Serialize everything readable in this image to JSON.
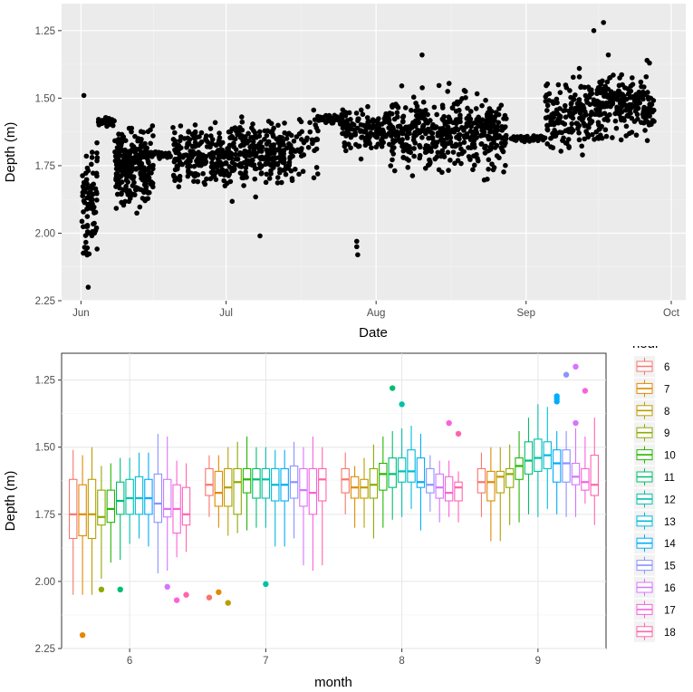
{
  "chart_data": [
    {
      "type": "scatter",
      "title": "",
      "xlabel": "Date",
      "ylabel": "Depth (m)",
      "y_reversed": true,
      "ylim": [
        2.25,
        1.15
      ],
      "y_ticks": [
        1.25,
        1.5,
        1.75,
        2.0,
        2.25
      ],
      "y_tick_labels": [
        "1.25",
        "1.50",
        "1.75",
        "2.00",
        "2.25"
      ],
      "x_range_days": [
        -4,
        125
      ],
      "x_ticks": [
        {
          "day": 0,
          "label": "Jun"
        },
        {
          "day": 30,
          "label": "Jul"
        },
        {
          "day": 61,
          "label": "Aug"
        },
        {
          "day": 92,
          "label": "Sep"
        },
        {
          "day": 122,
          "label": "Oct"
        }
      ],
      "point_color": "#000000",
      "seed": 7,
      "segments": [
        {
          "d0": 0.2,
          "d1": 3.5,
          "n": 80,
          "mean": 1.88,
          "sd": 0.16
        },
        {
          "d0": 3.5,
          "d1": 7.0,
          "n": 25,
          "mean": 1.59,
          "sd": 0.012
        },
        {
          "d0": 7.0,
          "d1": 15.0,
          "n": 260,
          "mean": 1.76,
          "sd": 0.085
        },
        {
          "d0": 15.0,
          "d1": 19.0,
          "n": 20,
          "mean": 1.71,
          "sd": 0.01
        },
        {
          "d0": 19.0,
          "d1": 44.0,
          "n": 460,
          "mean": 1.71,
          "sd": 0.08
        },
        {
          "d0": 44.0,
          "d1": 49.0,
          "n": 40,
          "mean": 1.66,
          "sd": 0.08
        },
        {
          "d0": 49.0,
          "d1": 54.0,
          "n": 35,
          "mean": 1.58,
          "sd": 0.01
        },
        {
          "d0": 54.0,
          "d1": 64.0,
          "n": 140,
          "mean": 1.62,
          "sd": 0.055
        },
        {
          "d0": 64.0,
          "d1": 88.0,
          "n": 440,
          "mean": 1.63,
          "sd": 0.09
        },
        {
          "d0": 88.0,
          "d1": 96.0,
          "n": 45,
          "mean": 1.65,
          "sd": 0.008
        },
        {
          "d0": 96.0,
          "d1": 108.0,
          "n": 200,
          "mean": 1.57,
          "sd": 0.09
        },
        {
          "d0": 108.0,
          "d1": 118.5,
          "n": 180,
          "mean": 1.53,
          "sd": 0.07
        }
      ],
      "outliers": [
        {
          "day": 1.5,
          "depth": 2.2
        },
        {
          "day": 0.6,
          "depth": 1.49
        },
        {
          "day": 1.0,
          "depth": 2.07
        },
        {
          "day": 37,
          "depth": 2.01
        },
        {
          "day": 57,
          "depth": 2.03
        },
        {
          "day": 57,
          "depth": 2.05
        },
        {
          "day": 57.2,
          "depth": 2.08
        },
        {
          "day": 70.5,
          "depth": 1.34
        },
        {
          "day": 106,
          "depth": 1.25
        },
        {
          "day": 108,
          "depth": 1.22
        },
        {
          "day": 109,
          "depth": 1.34
        },
        {
          "day": 103,
          "depth": 1.39
        },
        {
          "day": 117,
          "depth": 1.36
        },
        {
          "day": 117.5,
          "depth": 1.37
        }
      ]
    },
    {
      "type": "boxplot",
      "title": "",
      "xlabel": "month",
      "ylabel": "Depth (m)",
      "y_reversed": true,
      "ylim": [
        2.25,
        1.15
      ],
      "y_ticks": [
        1.25,
        1.5,
        1.75,
        2.0,
        2.25
      ],
      "y_tick_labels": [
        "1.25",
        "1.50",
        "1.75",
        "2.00",
        "2.25"
      ],
      "categories": [
        "6",
        "7",
        "8",
        "9"
      ],
      "legend": {
        "title": "hour",
        "position": "right"
      },
      "series": [
        {
          "name": "6",
          "color": "#F8766D",
          "boxes": [
            [
              1.51,
              1.62,
              1.75,
              1.84,
              2.05
            ],
            [
              1.53,
              1.58,
              1.64,
              1.68,
              1.76
            ],
            [
              1.52,
              1.58,
              1.62,
              1.67,
              1.75
            ],
            [
              1.52,
              1.58,
              1.63,
              1.67,
              1.76
            ]
          ],
          "outliers": [
            [],
            [
              2.06
            ],
            [],
            []
          ]
        },
        {
          "name": "7",
          "color": "#E18A00",
          "boxes": [
            [
              1.53,
              1.64,
              1.75,
              1.83,
              2.05
            ],
            [
              1.53,
              1.59,
              1.67,
              1.72,
              1.8
            ],
            [
              1.57,
              1.61,
              1.65,
              1.69,
              1.8
            ],
            [
              1.5,
              1.59,
              1.63,
              1.7,
              1.85
            ]
          ],
          "outliers": [
            [
              2.2
            ],
            [
              2.04
            ],
            [],
            []
          ]
        },
        {
          "name": "8",
          "color": "#BE9C00",
          "boxes": [
            [
              1.5,
              1.62,
              1.75,
              1.84,
              2.05
            ],
            [
              1.5,
              1.58,
              1.65,
              1.72,
              1.83
            ],
            [
              1.54,
              1.62,
              1.65,
              1.69,
              1.8
            ],
            [
              1.5,
              1.59,
              1.61,
              1.67,
              1.85
            ]
          ],
          "outliers": [
            [],
            [
              2.08
            ],
            [],
            []
          ]
        },
        {
          "name": "9",
          "color": "#8CAB00",
          "boxes": [
            [
              1.57,
              1.66,
              1.76,
              1.79,
              1.99
            ],
            [
              1.48,
              1.58,
              1.63,
              1.75,
              1.82
            ],
            [
              1.49,
              1.58,
              1.64,
              1.69,
              1.84
            ],
            [
              1.49,
              1.58,
              1.6,
              1.65,
              1.79
            ]
          ],
          "outliers": [
            [
              2.03
            ],
            [],
            [],
            []
          ]
        },
        {
          "name": "10",
          "color": "#24B700",
          "boxes": [
            [
              1.56,
              1.66,
              1.73,
              1.78,
              1.93
            ],
            [
              1.46,
              1.58,
              1.62,
              1.67,
              1.81
            ],
            [
              1.46,
              1.56,
              1.6,
              1.66,
              1.8
            ],
            [
              1.44,
              1.54,
              1.57,
              1.62,
              1.78
            ]
          ],
          "outliers": [
            [],
            [],
            [],
            []
          ]
        },
        {
          "name": "11",
          "color": "#00BE70",
          "boxes": [
            [
              1.54,
              1.63,
              1.7,
              1.75,
              1.92
            ],
            [
              1.5,
              1.58,
              1.62,
              1.69,
              1.8
            ],
            [
              1.44,
              1.54,
              1.6,
              1.65,
              1.77
            ],
            [
              1.39,
              1.48,
              1.55,
              1.6,
              1.75
            ]
          ],
          "outliers": [
            [
              2.03
            ],
            [],
            [
              1.28
            ],
            []
          ]
        },
        {
          "name": "12",
          "color": "#00C1AB",
          "boxes": [
            [
              1.54,
              1.62,
              1.69,
              1.75,
              1.86
            ],
            [
              1.5,
              1.58,
              1.62,
              1.69,
              1.8
            ],
            [
              1.43,
              1.54,
              1.59,
              1.63,
              1.76
            ],
            [
              1.34,
              1.47,
              1.54,
              1.59,
              1.76
            ]
          ],
          "outliers": [
            [],
            [
              2.01
            ],
            [
              1.34
            ],
            []
          ]
        },
        {
          "name": "13",
          "color": "#00BBDA",
          "boxes": [
            [
              1.52,
              1.61,
              1.69,
              1.75,
              1.84
            ],
            [
              1.51,
              1.58,
              1.64,
              1.7,
              1.87
            ],
            [
              1.42,
              1.51,
              1.59,
              1.63,
              1.73
            ],
            [
              1.35,
              1.48,
              1.53,
              1.58,
              1.73
            ]
          ],
          "outliers": [
            [],
            [],
            [],
            []
          ]
        },
        {
          "name": "14",
          "color": "#00ACFC",
          "boxes": [
            [
              1.52,
              1.62,
              1.69,
              1.75,
              1.87
            ],
            [
              1.51,
              1.58,
              1.64,
              1.7,
              1.87
            ],
            [
              1.45,
              1.54,
              1.63,
              1.65,
              1.81
            ],
            [
              1.44,
              1.51,
              1.56,
              1.63,
              1.75
            ]
          ],
          "outliers": [
            [],
            [],
            [],
            [
              1.31,
              1.32,
              1.33
            ]
          ]
        },
        {
          "name": "15",
          "color": "#8B93FF",
          "boxes": [
            [
              1.45,
              1.6,
              1.71,
              1.78,
              1.97
            ],
            [
              1.48,
              1.57,
              1.63,
              1.69,
              1.84
            ],
            [
              1.53,
              1.58,
              1.64,
              1.67,
              1.74
            ],
            [
              1.44,
              1.51,
              1.56,
              1.63,
              1.76
            ]
          ],
          "outliers": [
            [],
            [],
            [],
            [
              1.23
            ]
          ]
        },
        {
          "name": "16",
          "color": "#D575FE",
          "boxes": [
            [
              1.46,
              1.62,
              1.73,
              1.76,
              1.96
            ],
            [
              1.5,
              1.58,
              1.66,
              1.72,
              1.94
            ],
            [
              1.55,
              1.6,
              1.65,
              1.69,
              1.78
            ],
            [
              1.43,
              1.56,
              1.61,
              1.64,
              1.76
            ]
          ],
          "outliers": [
            [
              2.02
            ],
            [],
            [],
            [
              1.2,
              1.41
            ]
          ]
        },
        {
          "name": "17",
          "color": "#F962DD",
          "boxes": [
            [
              1.55,
              1.64,
              1.73,
              1.82,
              1.91
            ],
            [
              1.46,
              1.58,
              1.67,
              1.75,
              1.96
            ],
            [
              1.55,
              1.61,
              1.67,
              1.7,
              1.76
            ],
            [
              1.46,
              1.58,
              1.63,
              1.66,
              1.71
            ]
          ],
          "outliers": [
            [
              2.07
            ],
            [],
            [
              1.41
            ],
            [
              1.29
            ]
          ]
        },
        {
          "name": "18",
          "color": "#FF65AC",
          "boxes": [
            [
              1.56,
              1.65,
              1.75,
              1.79,
              1.89
            ],
            [
              1.5,
              1.58,
              1.62,
              1.7,
              1.94
            ],
            [
              1.59,
              1.63,
              1.65,
              1.7,
              1.78
            ],
            [
              1.39,
              1.53,
              1.64,
              1.68,
              1.79
            ]
          ],
          "outliers": [
            [
              2.05
            ],
            [],
            [
              1.45
            ],
            []
          ]
        }
      ]
    }
  ]
}
